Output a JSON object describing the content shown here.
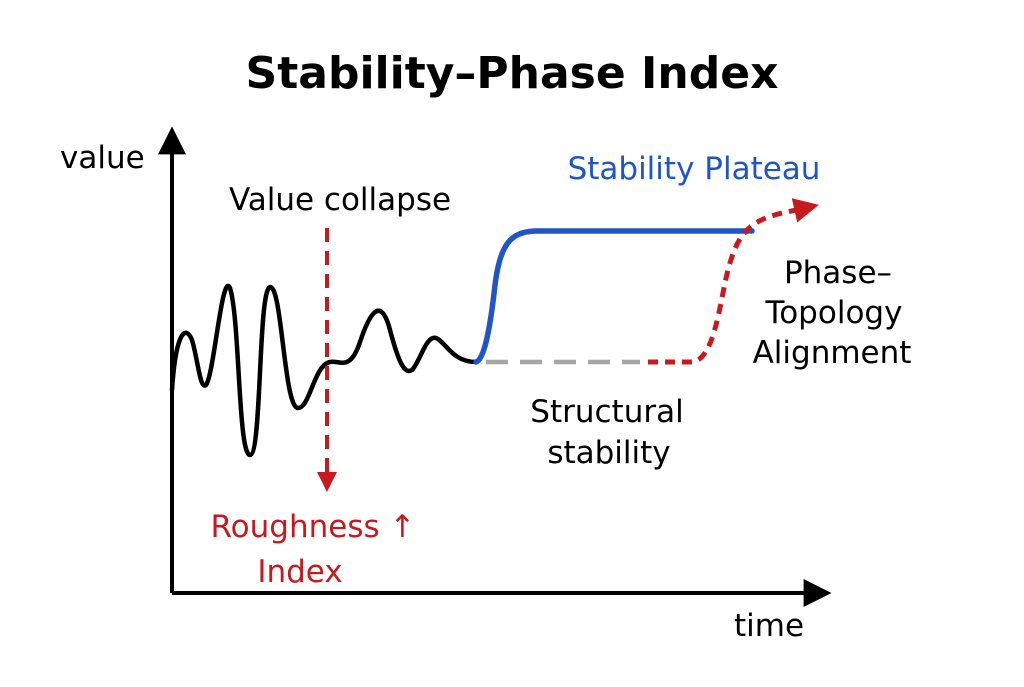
{
  "title": "Stability–Phase Index",
  "axes": {
    "y_label": "value",
    "x_label": "time"
  },
  "annotations": {
    "value_collapse": "Value collapse",
    "roughness": [
      "Roughness ↑",
      "Index"
    ],
    "stability_plateau": "Stability Plateau",
    "structural_stability": [
      "Structural",
      "stability"
    ],
    "phase_topology": [
      "Phase–",
      "Topology",
      "Alignment"
    ]
  },
  "colors": {
    "signal": "#000000",
    "plateau": "#1f55c8",
    "accent_red": "#c8191e",
    "dashed_gray": "#a6a6a6",
    "axis": "#000000"
  }
}
